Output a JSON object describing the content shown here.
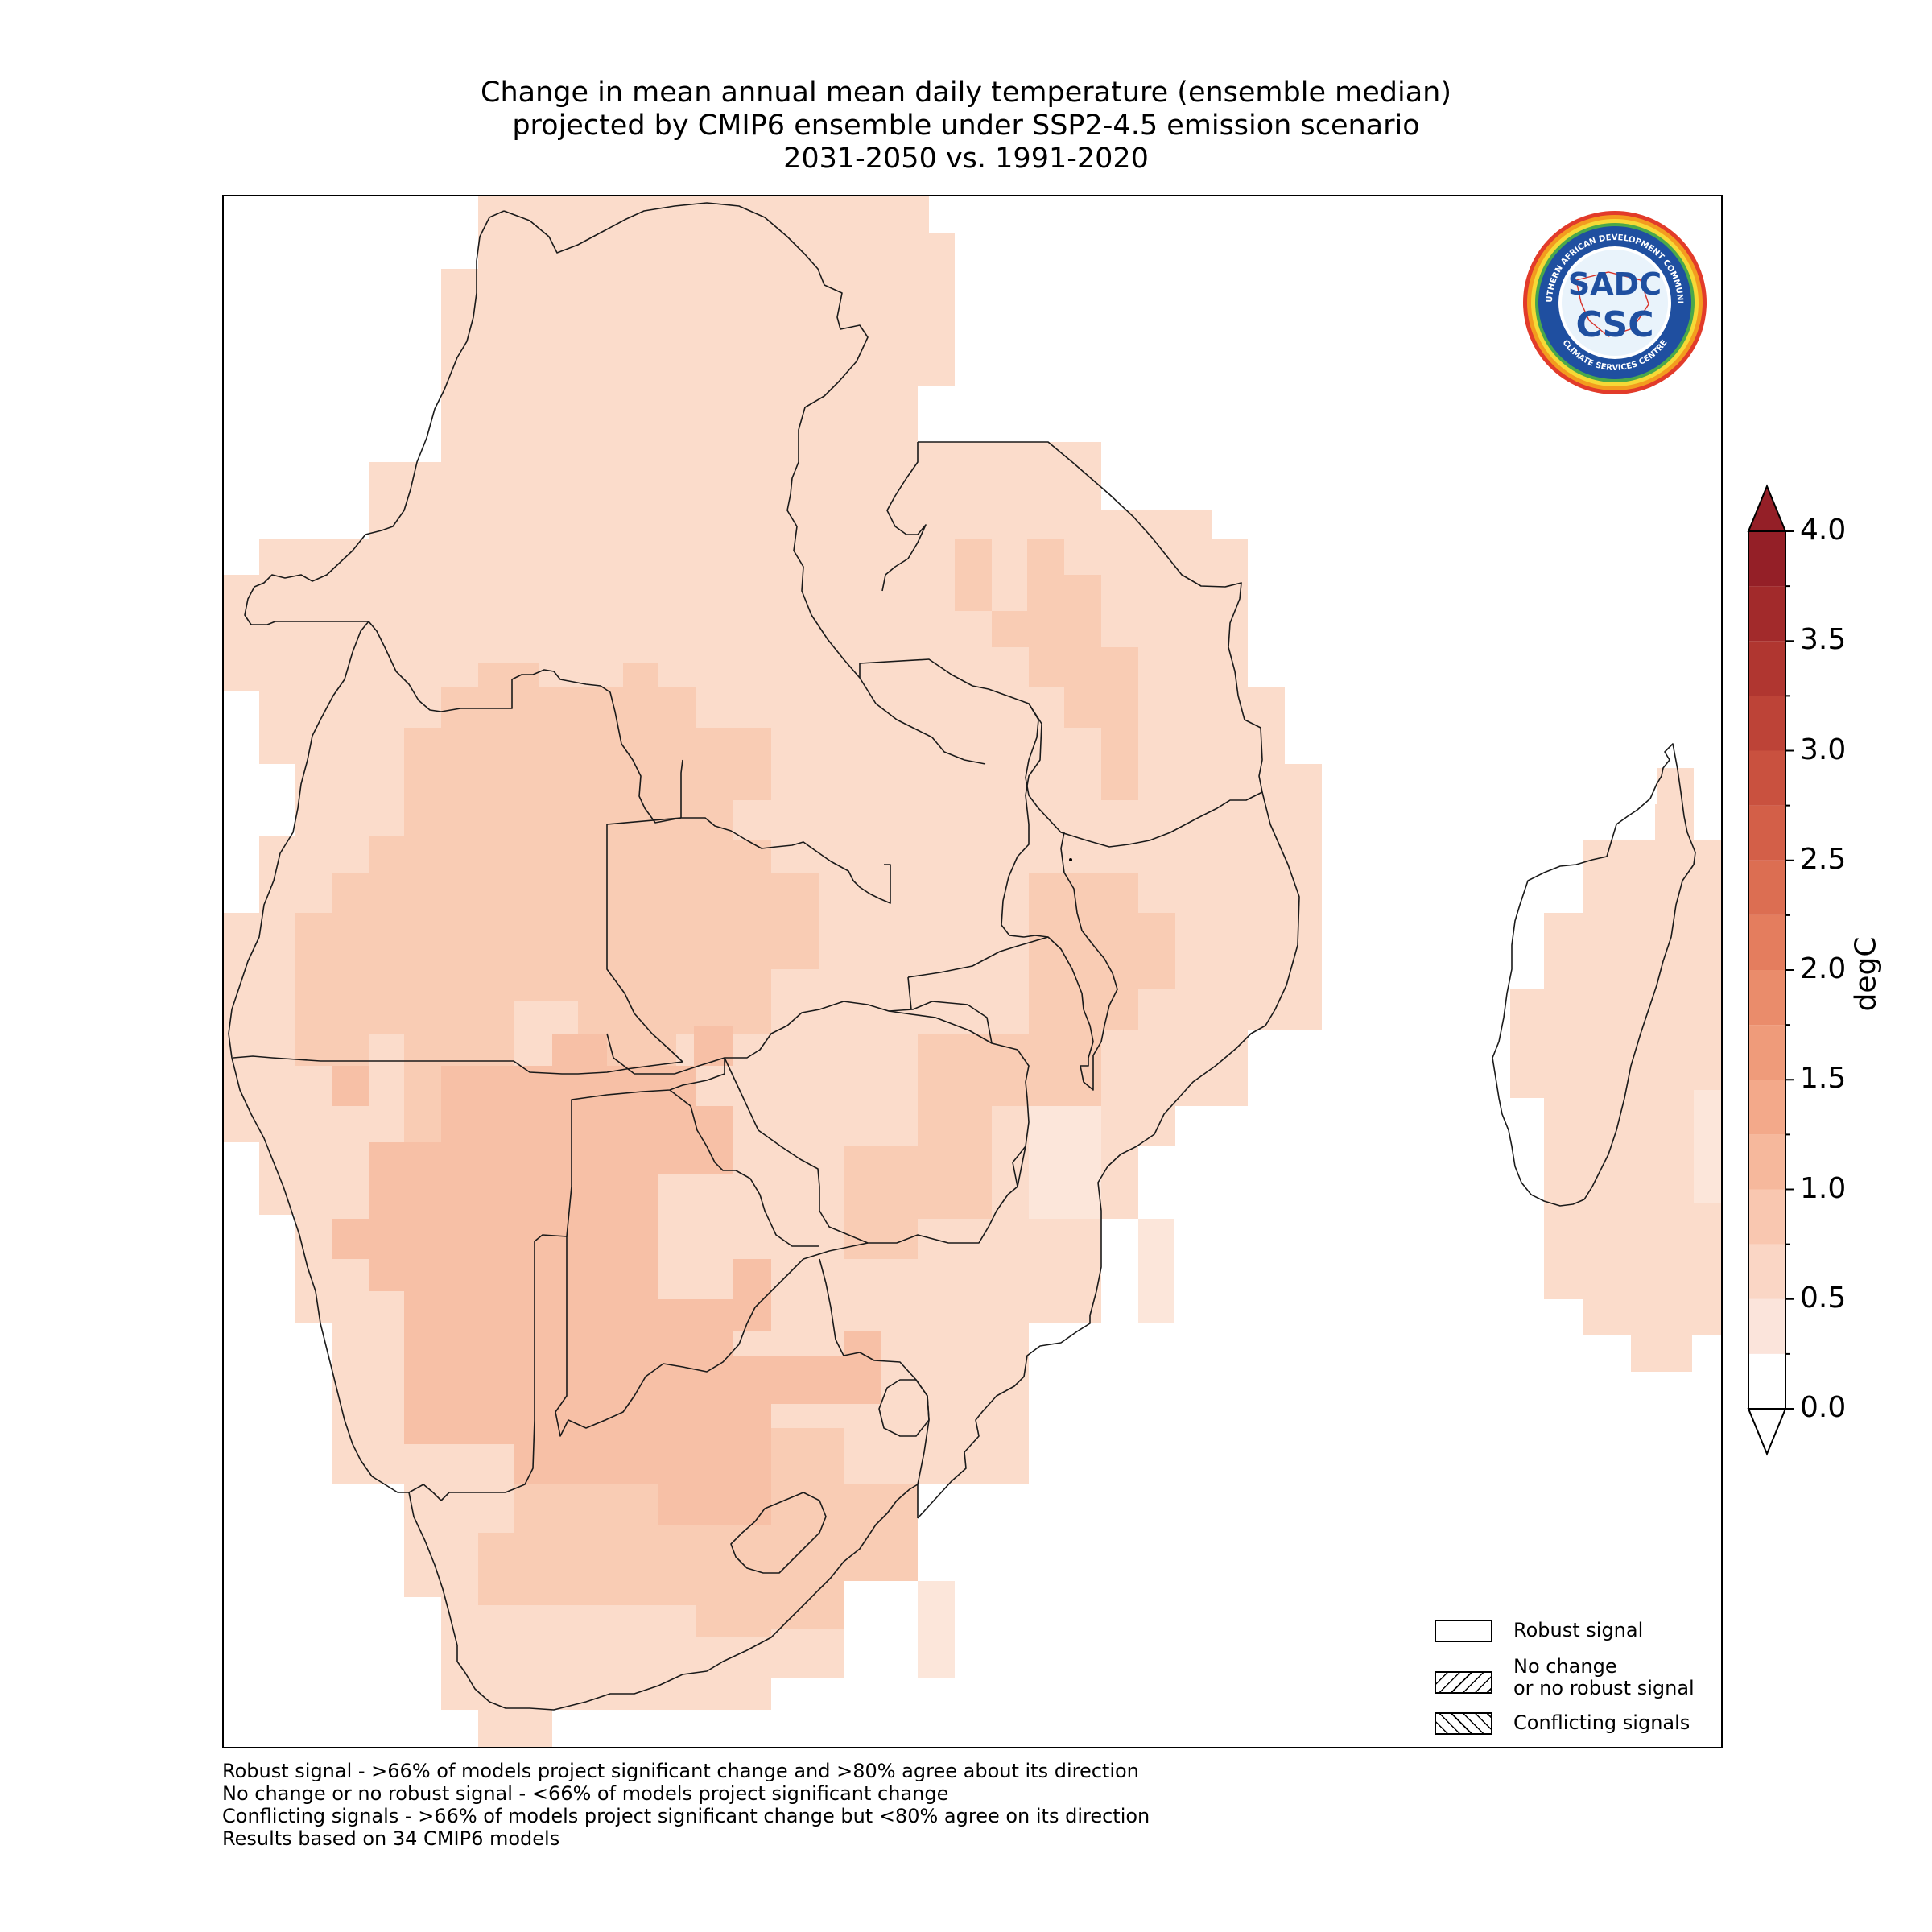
{
  "title": {
    "line1": "Change in mean annual mean daily temperature (ensemble median)",
    "line2": "projected by CMIP6 ensemble under SSP2-4.5 emission scenario",
    "line3": "2031-2050 vs. 1991-2020"
  },
  "colorbar": {
    "unit": "degC",
    "ticks": [
      "0.0",
      "0.5",
      "1.0",
      "1.5",
      "2.0",
      "2.5",
      "3.0",
      "3.5",
      "4.0"
    ],
    "range": [
      0,
      4
    ],
    "step": 0.25,
    "extend": "both",
    "colors": [
      "#fdf3ef",
      "#fbe4db",
      "#fad6c5",
      "#f9c7b0",
      "#f6b89c",
      "#f3a98a",
      "#ef9b7a",
      "#ea8c6b",
      "#e47d5e",
      "#dc6e52",
      "#d35f48",
      "#c9513f",
      "#bd4337",
      "#b03630",
      "#a22a2b",
      "#941f27"
    ]
  },
  "map": {
    "region": "Southern Africa (SADC)",
    "field_colors": {
      "low": "#fbdccb",
      "mid": "#f9d2bd",
      "high": "#f6c3aa",
      "edge": "#fce6da"
    }
  },
  "logo": {
    "ring_text_top": "SOUTHERN AFRICAN DEVELOPMENT COMMUNITY",
    "ring_text_bottom": "CLIMATE SERVICES CENTRE",
    "center_text_top": "SADC",
    "center_text_bottom": "CSC"
  },
  "legend": {
    "robust": "Robust signal",
    "no_change_line1": "No change",
    "no_change_line2": "or no robust signal",
    "conflicting": "Conflicting signals"
  },
  "footnotes": {
    "line1": "Robust signal - >66% of models project significant change and >80% agree about its direction",
    "line2": "No change or no robust signal - <66% of models project significant change",
    "line3": "Conflicting signals - >66% of models project significant change but <80% agree on its direction",
    "line4": "Results based on 34 CMIP6 models"
  }
}
